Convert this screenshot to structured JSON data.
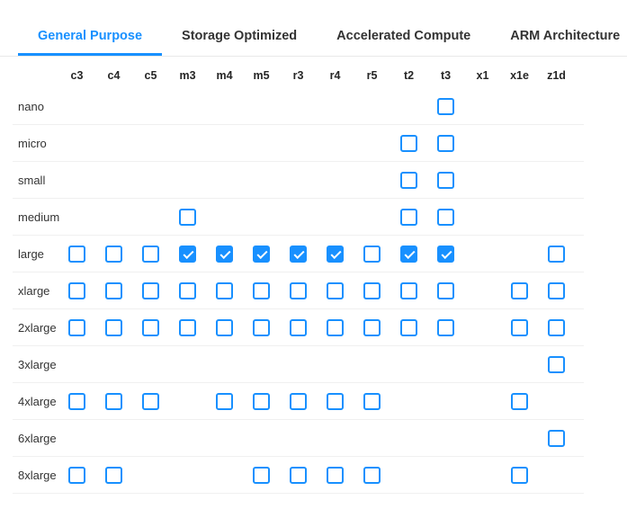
{
  "tabs": [
    {
      "label": "General Purpose",
      "active": true
    },
    {
      "label": "Storage Optimized",
      "active": false
    },
    {
      "label": "Accelerated Compute",
      "active": false
    },
    {
      "label": "ARM Architecture",
      "active": false
    }
  ],
  "grid": {
    "columns": [
      "c3",
      "c4",
      "c5",
      "m3",
      "m4",
      "m5",
      "r3",
      "r4",
      "r5",
      "t2",
      "t3",
      "x1",
      "x1e",
      "z1d"
    ],
    "rows": [
      {
        "label": "nano",
        "cells": [
          "",
          "",
          "",
          "",
          "",
          "",
          "",
          "",
          "",
          "",
          "unchecked",
          "",
          "",
          ""
        ]
      },
      {
        "label": "micro",
        "cells": [
          "",
          "",
          "",
          "",
          "",
          "",
          "",
          "",
          "",
          "unchecked",
          "unchecked",
          "",
          "",
          ""
        ]
      },
      {
        "label": "small",
        "cells": [
          "",
          "",
          "",
          "",
          "",
          "",
          "",
          "",
          "",
          "unchecked",
          "unchecked",
          "",
          "",
          ""
        ]
      },
      {
        "label": "medium",
        "cells": [
          "",
          "",
          "",
          "unchecked",
          "",
          "",
          "",
          "",
          "",
          "unchecked",
          "unchecked",
          "",
          "",
          ""
        ]
      },
      {
        "label": "large",
        "cells": [
          "unchecked",
          "unchecked",
          "unchecked",
          "checked",
          "checked",
          "checked",
          "checked",
          "checked",
          "unchecked",
          "checked",
          "checked",
          "",
          "",
          "unchecked"
        ]
      },
      {
        "label": "xlarge",
        "cells": [
          "unchecked",
          "unchecked",
          "unchecked",
          "unchecked",
          "unchecked",
          "unchecked",
          "unchecked",
          "unchecked",
          "unchecked",
          "unchecked",
          "unchecked",
          "",
          "unchecked",
          "unchecked"
        ]
      },
      {
        "label": "2xlarge",
        "cells": [
          "unchecked",
          "unchecked",
          "unchecked",
          "unchecked",
          "unchecked",
          "unchecked",
          "unchecked",
          "unchecked",
          "unchecked",
          "unchecked",
          "unchecked",
          "",
          "unchecked",
          "unchecked"
        ]
      },
      {
        "label": "3xlarge",
        "cells": [
          "",
          "",
          "",
          "",
          "",
          "",
          "",
          "",
          "",
          "",
          "",
          "",
          "",
          "unchecked"
        ]
      },
      {
        "label": "4xlarge",
        "cells": [
          "unchecked",
          "unchecked",
          "unchecked",
          "",
          "unchecked",
          "unchecked",
          "unchecked",
          "unchecked",
          "unchecked",
          "",
          "",
          "",
          "unchecked",
          ""
        ]
      },
      {
        "label": "6xlarge",
        "cells": [
          "",
          "",
          "",
          "",
          "",
          "",
          "",
          "",
          "",
          "",
          "",
          "",
          "",
          "unchecked"
        ]
      },
      {
        "label": "8xlarge",
        "cells": [
          "unchecked",
          "unchecked",
          "",
          "",
          "",
          "unchecked",
          "unchecked",
          "unchecked",
          "unchecked",
          "",
          "",
          "",
          "unchecked",
          ""
        ]
      }
    ]
  },
  "colors": {
    "accent": "#1890ff",
    "checked_fill": "#1890ff",
    "checkmark": "#ffffff",
    "row_divider": "#f0f0f0",
    "tab_bar_border": "#e9e9e9",
    "inactive_tab_text": "#333333",
    "column_header_text": "#262626",
    "row_label_text": "#333333"
  }
}
